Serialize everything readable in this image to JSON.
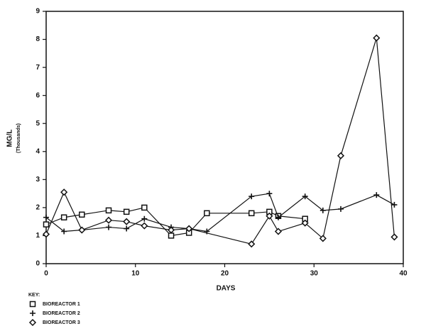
{
  "chart_data": {
    "type": "line",
    "y_label_lines": [
      "MG/L",
      "(Thousands)"
    ],
    "x_label": "DAYS",
    "legend_title": "KEY:",
    "xlim": [
      0,
      40
    ],
    "xticks": [
      0,
      10,
      20,
      30,
      40
    ],
    "ylim": [
      0,
      9
    ],
    "yticks": [
      0,
      1,
      2,
      3,
      4,
      5,
      6,
      7,
      8,
      9
    ],
    "grid": false,
    "legend": "bottom-left",
    "series": [
      {
        "name": "BIOREACTOR 1",
        "color": "#111111",
        "marker": "square",
        "x": [
          0,
          2,
          4,
          7,
          9,
          11,
          14,
          16,
          18,
          23,
          25,
          26,
          29
        ],
        "values": [
          1.4,
          1.65,
          1.75,
          1.9,
          1.85,
          2.0,
          1.0,
          1.1,
          1.8,
          1.8,
          1.85,
          1.7,
          1.6
        ]
      },
      {
        "name": "BIOREACTOR 2",
        "color": "#111111",
        "marker": "plus",
        "x": [
          0,
          2,
          4,
          7,
          9,
          11,
          14,
          16,
          18,
          23,
          25,
          26,
          29,
          31,
          33,
          37,
          39
        ],
        "values": [
          1.65,
          1.15,
          1.2,
          1.3,
          1.25,
          1.6,
          1.3,
          1.25,
          1.15,
          2.4,
          2.5,
          1.65,
          2.4,
          1.9,
          1.95,
          2.45,
          2.1
        ]
      },
      {
        "name": "BIOREACTOR 3",
        "color": "#111111",
        "marker": "diamond",
        "x": [
          0,
          2,
          4,
          7,
          9,
          11,
          14,
          16,
          23,
          25,
          26,
          29,
          31,
          33,
          37,
          39
        ],
        "values": [
          1.05,
          2.55,
          1.2,
          1.55,
          1.5,
          1.35,
          1.2,
          1.25,
          0.7,
          1.7,
          1.15,
          1.45,
          0.9,
          3.85,
          8.05,
          0.95
        ]
      }
    ]
  }
}
